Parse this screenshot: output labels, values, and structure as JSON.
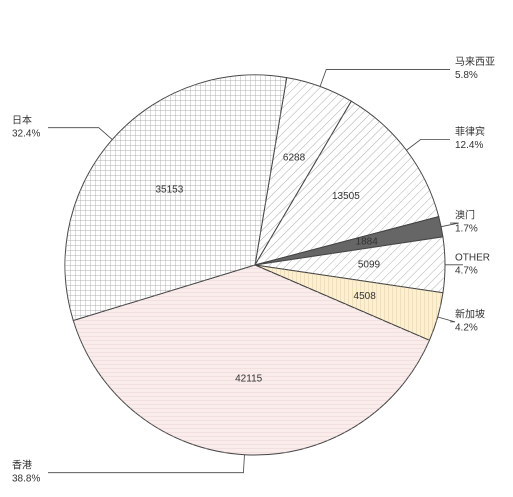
{
  "chart_data": {
    "type": "pie",
    "categories": [
      "马来西亚",
      "菲律宾",
      "澳门",
      "OTHER",
      "新加坡",
      "香港",
      "日本"
    ],
    "values": [
      6288,
      13505,
      1884,
      5099,
      4508,
      42115,
      35153
    ],
    "percents": [
      5.8,
      12.4,
      1.7,
      4.7,
      4.2,
      38.8,
      32.4
    ],
    "percent_labels": [
      "5.8%",
      "12.4%",
      "1.7%",
      "4.7%",
      "4.2%",
      "38.8%",
      "32.4%"
    ],
    "colors": [
      "#ffffff",
      "#ffffff",
      "#666666",
      "#ffffff",
      "#fdf0d0",
      "#fbecec",
      "#ffffff"
    ],
    "hatch": [
      "diag",
      "diag",
      "solid",
      "diag",
      "vertical",
      "horizontal",
      "grid"
    ],
    "start_angle": 9.6
  }
}
